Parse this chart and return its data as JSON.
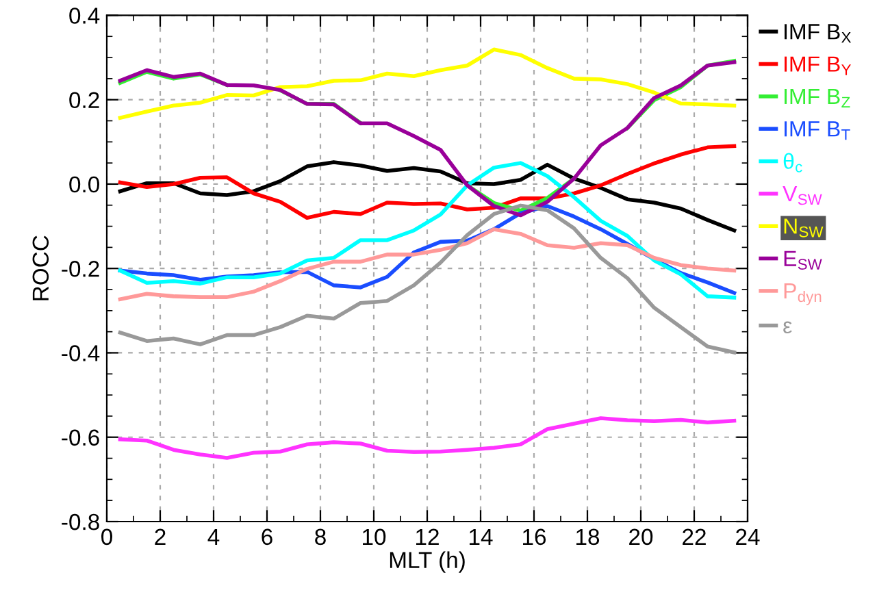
{
  "chart_data": {
    "type": "line",
    "xlabel": "MLT (h)",
    "ylabel": "ROCC",
    "x": [
      0.5,
      1.5,
      2.5,
      3.5,
      4.5,
      5.5,
      6.5,
      7.5,
      8.5,
      9.5,
      10.5,
      11.5,
      12.5,
      13.5,
      14.5,
      15.5,
      16.5,
      17.5,
      18.5,
      19.5,
      20.5,
      21.5,
      22.5,
      23.5
    ],
    "xlim": [
      0,
      24
    ],
    "xticks": [
      0,
      2,
      4,
      6,
      8,
      10,
      12,
      14,
      16,
      18,
      20,
      22,
      24
    ],
    "ylim": [
      -0.8,
      0.4
    ],
    "yticks": [
      {
        "value": -0.8,
        "label": "-0.8"
      },
      {
        "value": -0.6,
        "label": "-0.6"
      },
      {
        "value": -0.4,
        "label": "-0.4"
      },
      {
        "value": -0.2,
        "label": "-0.2"
      },
      {
        "value": 0,
        "label": "0.0"
      },
      {
        "value": 0.2,
        "label": "0.2"
      },
      {
        "value": 0.4,
        "label": "0.4"
      }
    ],
    "grid": true,
    "legend": "right",
    "marker": "none",
    "line_style": "solid",
    "series": [
      {
        "name": "IMF B$_{X}$",
        "color": "#000000",
        "values": [
          -0.017,
          0.002,
          0.002,
          -0.022,
          -0.026,
          -0.017,
          0.007,
          0.042,
          0.052,
          0.044,
          0.031,
          0.038,
          0.03,
          0.002,
          0.0,
          0.01,
          0.046,
          0.013,
          -0.009,
          -0.036,
          -0.044,
          -0.058,
          -0.085,
          -0.11
        ]
      },
      {
        "name": "IMF B$_{Y}$",
        "color": "#ff0000",
        "values": [
          0.004,
          -0.007,
          0.0,
          0.015,
          0.016,
          -0.022,
          -0.042,
          -0.08,
          -0.066,
          -0.071,
          -0.044,
          -0.047,
          -0.046,
          -0.06,
          -0.056,
          -0.034,
          -0.034,
          -0.022,
          -0.003,
          0.024,
          0.049,
          0.07,
          0.087,
          0.09
        ]
      },
      {
        "name": "IMF B$_{Z}$",
        "color": "#33ee33",
        "values": [
          0.24,
          0.266,
          0.25,
          0.26,
          0.235,
          null,
          0.222,
          0.19,
          0.19,
          0.145,
          null,
          null,
          null,
          -0.003,
          -0.045,
          -0.063,
          -0.033,
          0.013,
          null,
          0.133,
          0.199,
          0.23,
          0.281,
          0.292
        ]
      },
      {
        "name": "IMF B$_{T}$",
        "color": "#1a4dff",
        "values": [
          -0.205,
          -0.212,
          -0.216,
          -0.227,
          -0.219,
          -0.216,
          -0.209,
          -0.208,
          -0.24,
          -0.245,
          -0.22,
          -0.162,
          -0.137,
          -0.134,
          -0.107,
          -0.069,
          -0.052,
          -0.077,
          -0.107,
          -0.142,
          -0.178,
          -0.211,
          -0.233,
          -0.258
        ]
      },
      {
        "name": "θ$_{c}$",
        "color": "#00ffff",
        "values": [
          -0.205,
          -0.234,
          -0.23,
          -0.236,
          -0.221,
          -0.221,
          -0.212,
          -0.181,
          -0.175,
          -0.133,
          -0.133,
          -0.11,
          -0.072,
          -0.003,
          0.039,
          0.05,
          0.019,
          -0.031,
          -0.087,
          -0.123,
          -0.181,
          -0.214,
          -0.266,
          -0.269
        ]
      },
      {
        "name": "V$_{SW}$",
        "color": "#ff33ff",
        "values": [
          -0.605,
          -0.608,
          -0.63,
          -0.641,
          -0.649,
          -0.637,
          -0.634,
          -0.617,
          -0.612,
          -0.615,
          -0.632,
          -0.635,
          -0.634,
          -0.63,
          -0.625,
          -0.617,
          -0.581,
          -0.568,
          -0.555,
          -0.56,
          -0.562,
          -0.559,
          -0.565,
          -0.561
        ]
      },
      {
        "name": "N$_{SW}$",
        "color": "#ffff00",
        "values": [
          0.157,
          0.172,
          0.186,
          0.193,
          0.211,
          0.21,
          0.23,
          0.232,
          0.245,
          0.246,
          0.262,
          0.256,
          0.27,
          0.281,
          0.319,
          0.306,
          0.275,
          0.25,
          0.248,
          0.237,
          0.217,
          0.191,
          0.189,
          0.186
        ]
      },
      {
        "name": "E$_{SW}$",
        "color": "#990099",
        "values": [
          0.245,
          0.27,
          0.254,
          0.262,
          0.235,
          0.234,
          0.223,
          0.19,
          0.189,
          0.144,
          0.144,
          0.114,
          0.081,
          -0.003,
          -0.052,
          -0.074,
          -0.042,
          0.013,
          0.092,
          0.133,
          0.204,
          0.234,
          0.281,
          0.289
        ]
      },
      {
        "name": "P$_{dyn}$",
        "color": "#ff9999",
        "values": [
          -0.273,
          -0.26,
          -0.266,
          -0.268,
          -0.268,
          -0.255,
          -0.23,
          -0.201,
          -0.184,
          -0.184,
          -0.167,
          -0.167,
          -0.156,
          -0.14,
          -0.107,
          -0.118,
          -0.145,
          -0.151,
          -0.14,
          -0.145,
          -0.175,
          -0.192,
          -0.2,
          -0.205
        ]
      },
      {
        "name": "ε",
        "color": "#999999",
        "values": [
          -0.352,
          -0.372,
          -0.366,
          -0.38,
          -0.358,
          -0.358,
          -0.339,
          -0.312,
          -0.319,
          -0.282,
          -0.277,
          -0.24,
          -0.186,
          -0.121,
          -0.071,
          -0.051,
          -0.062,
          -0.105,
          -0.175,
          -0.223,
          -0.293,
          -0.339,
          -0.385,
          -0.399
        ]
      }
    ]
  }
}
